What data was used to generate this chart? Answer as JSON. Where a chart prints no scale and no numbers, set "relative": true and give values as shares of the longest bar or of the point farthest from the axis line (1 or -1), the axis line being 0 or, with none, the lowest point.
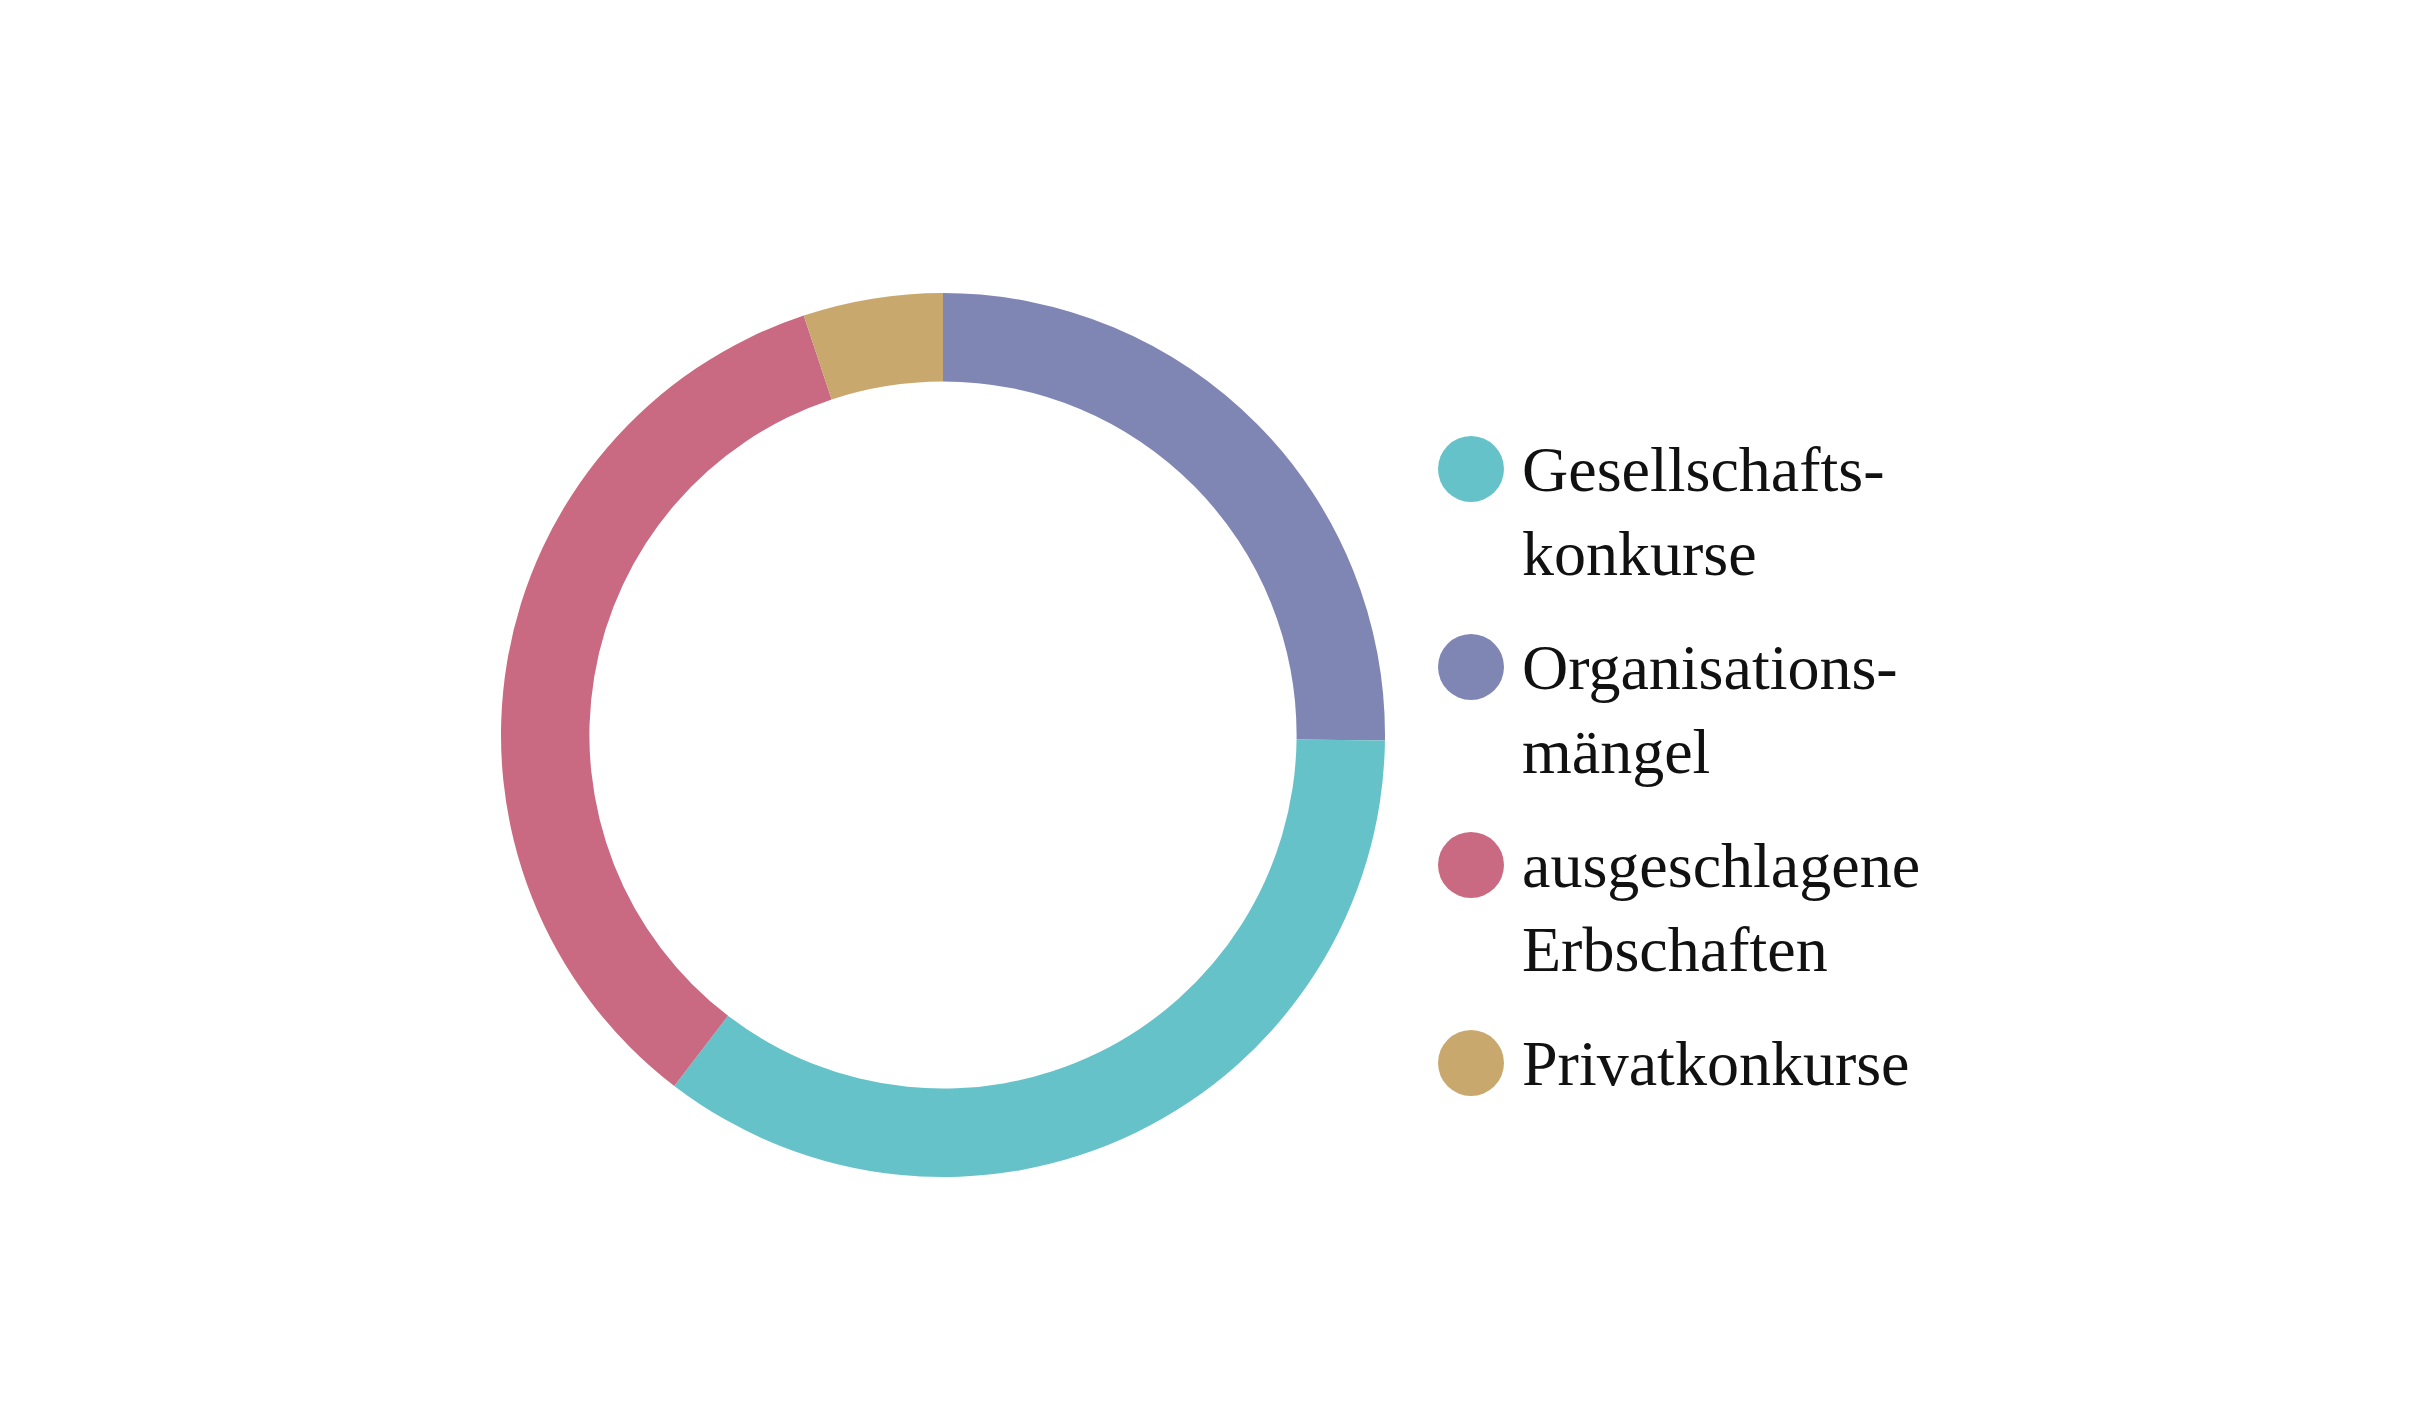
{
  "chart_data": {
    "type": "donut",
    "relative": true,
    "categories": [
      "Gesellschafts-konkurse",
      "Organisations-mängel",
      "ausgeschlagene Erbschaften",
      "Privatkonkurse"
    ],
    "values": [
      35.2,
      25.2,
      34.5,
      5.1
    ],
    "colors": [
      "#66c2c9",
      "#7f86b3",
      "#c96a82",
      "#c9a86e"
    ],
    "legend": "right"
  }
}
